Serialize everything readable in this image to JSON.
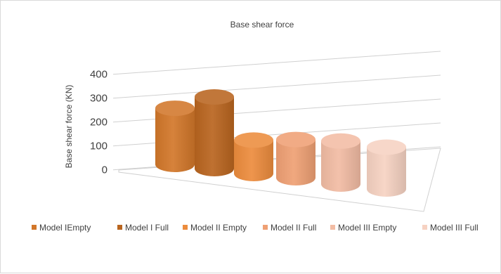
{
  "chart_data": {
    "type": "bar",
    "title": "Base shear force",
    "ylabel": "Base shear force (KN)",
    "xlabel": "",
    "ylim": [
      0,
      400
    ],
    "yticks": [
      0,
      100,
      200,
      300,
      400
    ],
    "grid": true,
    "legend_position": "bottom",
    "categories": [
      "Model IEmpty",
      "Model I Full",
      "Model II Empty",
      "Model II Full",
      "Model III Empty",
      "Model III Full"
    ],
    "values": [
      235,
      300,
      140,
      160,
      180,
      175
    ],
    "colors": [
      "#D2772A",
      "#B9651F",
      "#EC8C3D",
      "#EFA074",
      "#F2BCA4",
      "#F6D2C2"
    ]
  }
}
